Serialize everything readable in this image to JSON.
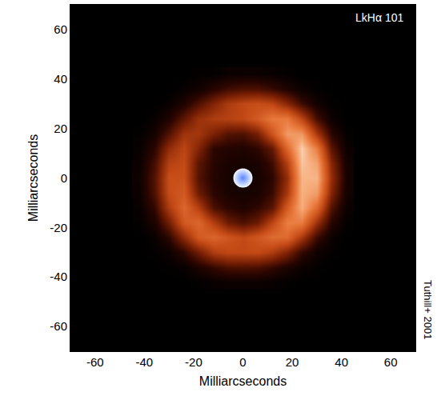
{
  "chart_data": {
    "type": "heatmap",
    "x_label": "Milliarcseconds",
    "y_label": "Milliarcseconds",
    "annotations": [
      "LkHα 101",
      "Tuthill+ 2001"
    ],
    "xlim": [
      -70,
      70
    ],
    "ylim": [
      -70,
      70
    ],
    "xticks": [
      -60,
      -40,
      -20,
      0,
      20,
      40,
      60
    ],
    "yticks": [
      -60,
      -40,
      -20,
      0,
      20,
      40,
      60
    ],
    "grid": false,
    "x": [
      -42,
      -36,
      -30,
      -24,
      -18,
      -12,
      -6,
      0,
      6,
      12,
      18,
      24,
      30,
      36,
      42
    ],
    "y": [
      -42,
      -36,
      -30,
      -24,
      -18,
      -12,
      -6,
      0,
      6,
      12,
      18,
      24,
      30,
      36,
      42
    ],
    "zlim": [
      0,
      100
    ],
    "z": [
      [
        0,
        0,
        0,
        0,
        1,
        2,
        3,
        3,
        3,
        2,
        1,
        0,
        0,
        0,
        0
      ],
      [
        0,
        0,
        1,
        2,
        8,
        14,
        19,
        20,
        19,
        14,
        8,
        3,
        1,
        0,
        0
      ],
      [
        0,
        1,
        3,
        13,
        28,
        44,
        49,
        49,
        50,
        44,
        31,
        14,
        4,
        1,
        0
      ],
      [
        0,
        2,
        13,
        36,
        57,
        63,
        55,
        49,
        56,
        65,
        64,
        42,
        16,
        3,
        0
      ],
      [
        1,
        8,
        28,
        57,
        63,
        45,
        27,
        20,
        27,
        48,
        73,
        72,
        38,
        11,
        1
      ],
      [
        2,
        14,
        44,
        63,
        45,
        19,
        12,
        9,
        13,
        22,
        58,
        88,
        64,
        21,
        3
      ],
      [
        3,
        20,
        51,
        57,
        27,
        12,
        7,
        6,
        7,
        15,
        42,
        89,
        82,
        32,
        5
      ],
      [
        4,
        21,
        52,
        52,
        21,
        10,
        6,
        6,
        6,
        12,
        37,
        90,
        90,
        37,
        6
      ],
      [
        3,
        18,
        46,
        50,
        23,
        11,
        7,
        6,
        7,
        16,
        45,
        94,
        85,
        33,
        5
      ],
      [
        2,
        12,
        36,
        48,
        32,
        12,
        10,
        9,
        13,
        25,
        64,
        97,
        71,
        23,
        3
      ],
      [
        1,
        6,
        21,
        40,
        41,
        30,
        21,
        20,
        29,
        54,
        82,
        81,
        42,
        12,
        1
      ],
      [
        0,
        2,
        9,
        24,
        38,
        44,
        46,
        49,
        58,
        71,
        71,
        48,
        18,
        3,
        0
      ],
      [
        0,
        0,
        2,
        9,
        20,
        32,
        43,
        49,
        52,
        48,
        33,
        16,
        5,
        1,
        0
      ],
      [
        0,
        0,
        0,
        2,
        5,
        11,
        17,
        20,
        20,
        15,
        9,
        3,
        1,
        0,
        0
      ],
      [
        0,
        0,
        0,
        0,
        1,
        1,
        3,
        3,
        3,
        2,
        1,
        0,
        0,
        0,
        0
      ]
    ],
    "points": {
      "x": [
        0
      ],
      "y": [
        0
      ],
      "color": "#5a86ff"
    }
  }
}
